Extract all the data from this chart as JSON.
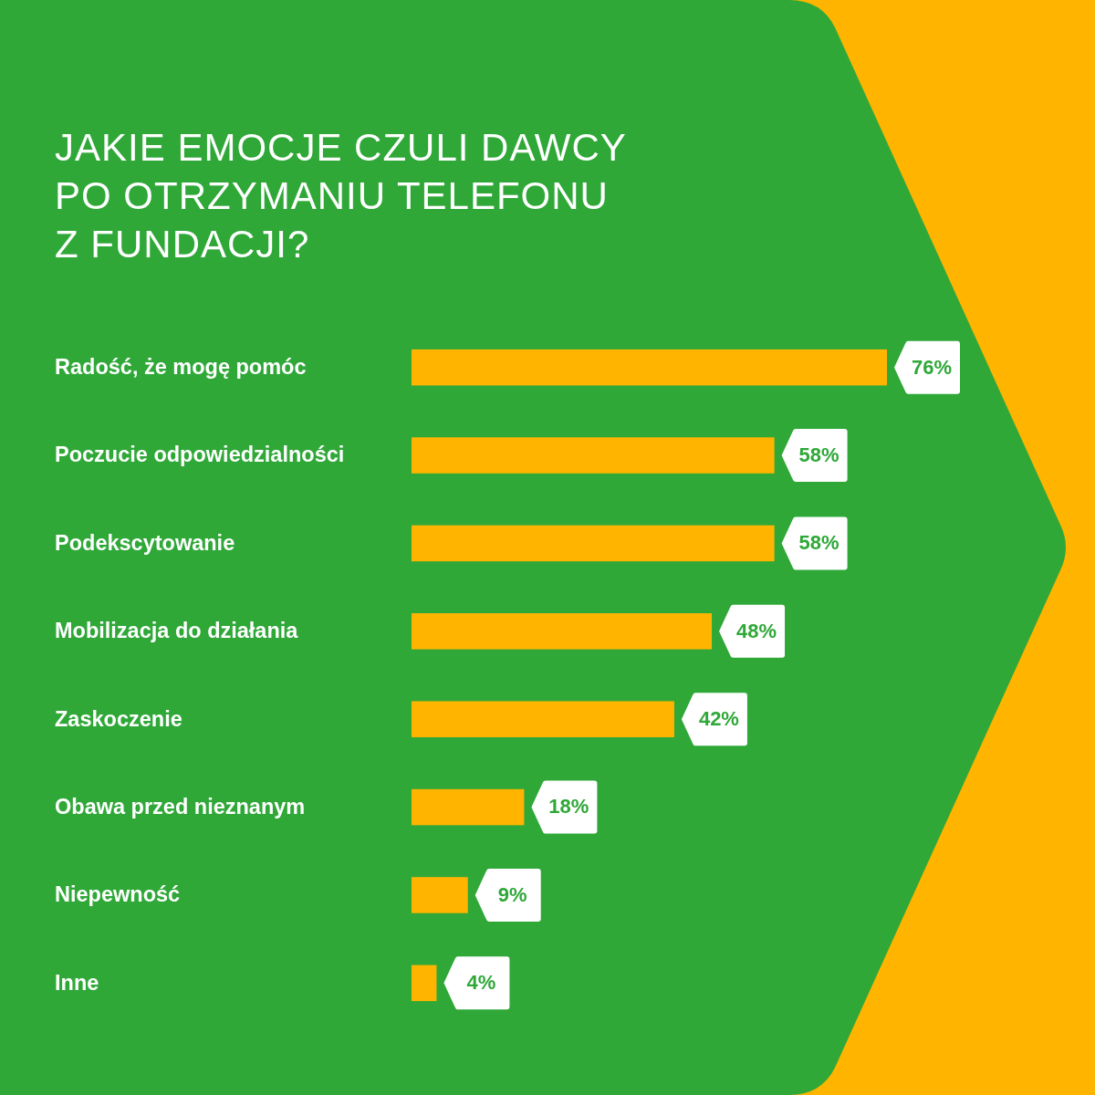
{
  "chart_data": {
    "type": "bar",
    "orientation": "horizontal",
    "title": "JAKIE EMOCJE CZULI DAWCY PO OTRZYMANIU TELEFONU Z FUNDACJI?",
    "categories": [
      "Radość, że mogę pomóc",
      "Poczucie odpowiedzialności",
      "Podekscytowanie",
      "Mobilizacja do działania",
      "Zaskoczenie",
      "Obawa przed nieznanym",
      "Niepewność",
      "Inne"
    ],
    "values": [
      76,
      58,
      58,
      48,
      42,
      18,
      9,
      4
    ],
    "color": "#ffb400",
    "value_labels": [
      "76%",
      "58%",
      "58%",
      "48%",
      "42%",
      "18%",
      "9%",
      "4%"
    ]
  }
}
